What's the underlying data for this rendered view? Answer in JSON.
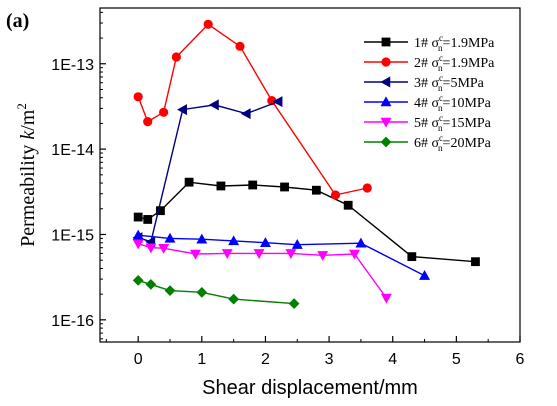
{
  "chart_data": {
    "type": "scatter",
    "panel_label": "(a)",
    "xlabel": "Shear displacement/mm",
    "ylabel_prefix": "Permeability ",
    "ylabel_var": "k",
    "ylabel_unit": "/m",
    "ylabel_sup": "2",
    "xlim": [
      -0.6,
      6
    ],
    "ylim": [
      5.5e-17,
      4.5e-13
    ],
    "yscale": "log",
    "x_ticks": [
      0,
      1,
      2,
      3,
      4,
      5,
      6
    ],
    "x_tick_labels": [
      "0",
      "1",
      "2",
      "3",
      "4",
      "5",
      "6"
    ],
    "y_ticks": [
      1e-16,
      1e-15,
      1e-14,
      1e-13
    ],
    "y_tick_labels": [
      "1E-16",
      "1E-15",
      "1E-14",
      "1E-13"
    ],
    "grid": false,
    "legend_position": "top-right",
    "series": [
      {
        "name": "1# σnc=1.9MPa",
        "legend_prefix": "1# σ",
        "legend_sub": "n",
        "legend_sup": "c",
        "legend_suffix": "=1.9MPa",
        "color": "#000000",
        "marker": "square",
        "x": [
          0,
          0.15,
          0.35,
          0.8,
          1.3,
          1.8,
          2.3,
          2.8,
          3.3,
          4.3,
          5.3
        ],
        "y": [
          1.6e-15,
          1.5e-15,
          1.9e-15,
          4.1e-15,
          3.7e-15,
          3.8e-15,
          3.6e-15,
          3.3e-15,
          2.2e-15,
          5.5e-16,
          4.8e-16
        ]
      },
      {
        "name": "2# σnc=1.9MPa",
        "legend_prefix": "2# σ",
        "legend_sub": "n",
        "legend_sup": "c",
        "legend_suffix": "=1.9MPa",
        "color": "#ff0000",
        "marker": "circle",
        "x": [
          0,
          0.15,
          0.4,
          0.6,
          1.1,
          1.6,
          2.1,
          3.1,
          3.6
        ],
        "y": [
          4.1e-14,
          2.1e-14,
          2.7e-14,
          1.2e-13,
          2.9e-13,
          1.6e-13,
          3.7e-14,
          2.9e-15,
          3.5e-15
        ]
      },
      {
        "name": "3# σnc=5MPa",
        "legend_prefix": "3# σ",
        "legend_sub": "n",
        "legend_sup": "c",
        "legend_suffix": "=5MPa",
        "color": "#000080",
        "marker": "triangle-left",
        "x": [
          0,
          0.2,
          0.7,
          1.2,
          1.7,
          2.2
        ],
        "y": [
          9.2e-16,
          8.2e-16,
          2.9e-14,
          3.3e-14,
          2.6e-14,
          3.6e-14
        ]
      },
      {
        "name": "4# σnc=10MPa",
        "legend_prefix": "4# σ",
        "legend_sub": "n",
        "legend_sup": "c",
        "legend_suffix": "=10MPa",
        "color": "#0000ff",
        "marker": "triangle-up",
        "x": [
          0,
          0.5,
          1.0,
          1.5,
          2.0,
          2.5,
          3.5,
          4.5
        ],
        "y": [
          9.8e-16,
          9e-16,
          8.8e-16,
          8.4e-16,
          8e-16,
          7.6e-16,
          7.9e-16,
          3.3e-16
        ]
      },
      {
        "name": "5# σnc=15MPa",
        "legend_prefix": "5# σ",
        "legend_sub": "n",
        "legend_sup": "c",
        "legend_suffix": "=15MPa",
        "color": "#ff00ff",
        "marker": "triangle-down",
        "x": [
          0,
          0.2,
          0.4,
          0.9,
          1.4,
          1.9,
          2.4,
          2.9,
          3.4,
          3.9
        ],
        "y": [
          7.8e-16,
          7e-16,
          6.9e-16,
          5.9e-16,
          6e-16,
          6e-16,
          6e-16,
          5.7e-16,
          5.9e-16,
          1.8e-16
        ]
      },
      {
        "name": "6# σnc=20MPa",
        "legend_prefix": "6# σ",
        "legend_sub": "n",
        "legend_sup": "c",
        "legend_suffix": "=20MPa",
        "color": "#008000",
        "marker": "diamond",
        "x": [
          0,
          0.2,
          0.5,
          1.0,
          1.5,
          2.45
        ],
        "y": [
          2.9e-16,
          2.6e-16,
          2.2e-16,
          2.1e-16,
          1.75e-16,
          1.55e-16
        ]
      }
    ]
  }
}
